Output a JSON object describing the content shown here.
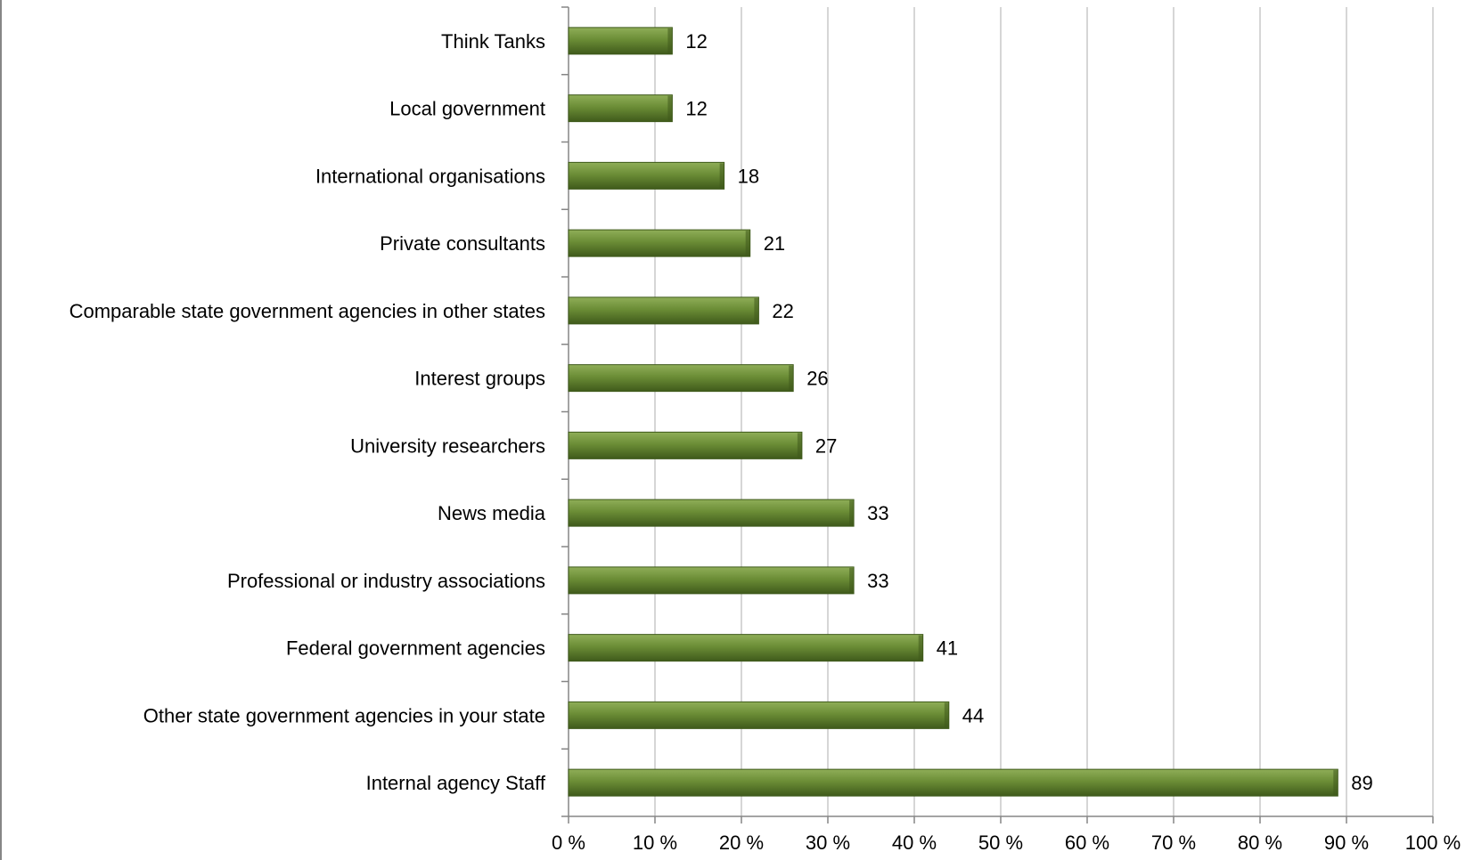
{
  "chart_data": {
    "type": "bar",
    "orientation": "horizontal",
    "categories": [
      "Think Tanks",
      "Local government",
      "International organisations",
      "Private consultants",
      "Comparable state government agencies in other states",
      "Interest groups",
      "University researchers",
      "News media",
      "Professional or industry associations",
      "Federal government agencies",
      "Other state government agencies in your state",
      "Internal agency Staff"
    ],
    "values": [
      12,
      12,
      18,
      21,
      22,
      26,
      27,
      33,
      33,
      41,
      44,
      89
    ],
    "value_labels": [
      "12",
      "12",
      "18",
      "21",
      "22",
      "26",
      "27",
      "33",
      "33",
      "41",
      "44",
      "89"
    ],
    "title": "",
    "xlabel": "",
    "ylabel": "",
    "xlim": [
      0,
      100
    ],
    "x_ticks": [
      0,
      10,
      20,
      30,
      40,
      50,
      60,
      70,
      80,
      90,
      100
    ],
    "x_tick_labels": [
      "0 %",
      "10 %",
      "20 %",
      "30 %",
      "40 %",
      "50 %",
      "60 %",
      "70 %",
      "80 %",
      "90 %",
      "100 %"
    ],
    "grid": "vertical",
    "legend": "none",
    "colors": {
      "bar": "#5f7f2e",
      "bar_light": "#8fae58",
      "bar_dark": "#3f5a1b",
      "grid": "#c8c8c8",
      "axis": "#868686"
    }
  }
}
